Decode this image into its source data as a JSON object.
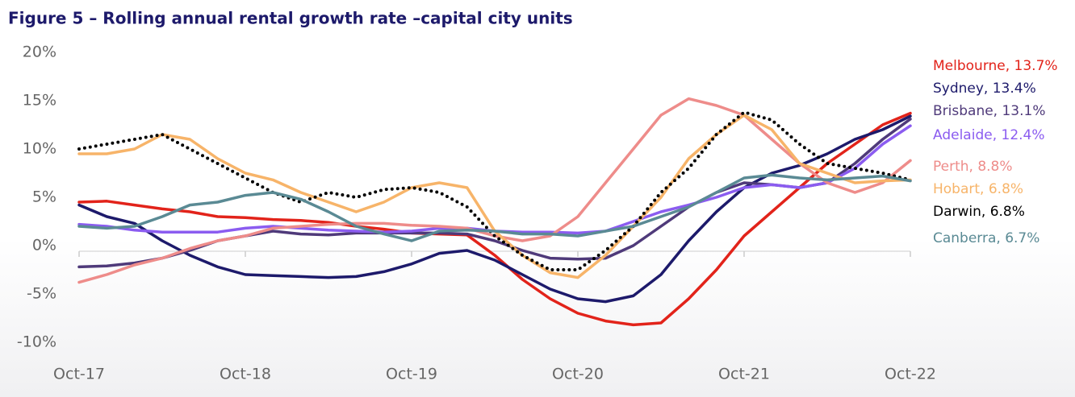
{
  "chart_data": {
    "type": "line",
    "title": "Figure 5 – Rolling annual rental growth rate –capital city units",
    "categories": [
      "Oct-17",
      null,
      null,
      null,
      null,
      null,
      "Oct-18",
      null,
      null,
      null,
      null,
      null,
      "Oct-19",
      null,
      null,
      null,
      null,
      null,
      "Oct-20",
      null,
      null,
      null,
      null,
      null,
      "Oct-21",
      null,
      null,
      null,
      null,
      null,
      "Oct-22"
    ],
    "ylim": [
      -10,
      20
    ],
    "yticks": [
      {
        "value": -10,
        "label": "-10%"
      },
      {
        "value": -5,
        "label": "-5%"
      },
      {
        "value": 0,
        "label": "0%"
      },
      {
        "value": 5,
        "label": "5%"
      },
      {
        "value": 10,
        "label": "10%"
      },
      {
        "value": 15,
        "label": "15%"
      },
      {
        "value": 20,
        "label": "20%"
      }
    ],
    "grid": false,
    "series": [
      {
        "name": "Melbourne, 13.7%",
        "color": "#e2231a",
        "values": [
          4.5,
          4.6,
          4.2,
          3.8,
          3.5,
          3.0,
          2.9,
          2.7,
          2.6,
          2.4,
          2.0,
          1.7,
          1.3,
          1.2,
          1.1,
          -1.0,
          -3.5,
          -5.5,
          -7.0,
          -7.8,
          -8.2,
          -8.0,
          -5.5,
          -2.5,
          1.0,
          3.5,
          6.0,
          8.5,
          10.5,
          12.5,
          13.7
        ]
      },
      {
        "name": "Sydney, 13.4%",
        "color": "#1d1a6b",
        "values": [
          4.2,
          3.0,
          2.3,
          0.5,
          -1.0,
          -2.2,
          -3.0,
          -3.1,
          -3.2,
          -3.3,
          -3.2,
          -2.7,
          -1.9,
          -0.8,
          -0.5,
          -1.5,
          -3.0,
          -4.5,
          -5.5,
          -5.8,
          -5.2,
          -3.0,
          0.5,
          3.5,
          6.0,
          7.5,
          8.3,
          9.5,
          11.0,
          12.0,
          13.4
        ]
      },
      {
        "name": "Brisbane, 13.1%",
        "color": "#4f3a7a",
        "values": [
          -2.2,
          -2.1,
          -1.8,
          -1.3,
          -0.5,
          0.5,
          1.0,
          1.5,
          1.2,
          1.1,
          1.3,
          1.3,
          1.3,
          1.3,
          1.2,
          0.5,
          -0.5,
          -1.3,
          -1.4,
          -1.3,
          0.0,
          2.0,
          4.0,
          5.5,
          6.5,
          6.3,
          6.0,
          6.5,
          8.5,
          11.0,
          13.1
        ]
      },
      {
        "name": "Adelaide, 12.4%",
        "color": "#8b5cf0",
        "values": [
          2.2,
          2.0,
          1.6,
          1.4,
          1.4,
          1.4,
          1.8,
          2.0,
          1.8,
          1.6,
          1.5,
          1.4,
          1.5,
          1.8,
          1.8,
          1.5,
          1.4,
          1.4,
          1.3,
          1.5,
          2.5,
          3.5,
          4.2,
          5.0,
          6.0,
          6.3,
          6.0,
          6.5,
          8.0,
          10.5,
          12.4
        ]
      },
      {
        "name": "Perth, 8.8%",
        "color": "#ee8c8a",
        "values": [
          -3.8,
          -3.0,
          -2.0,
          -1.3,
          -0.3,
          0.5,
          1.0,
          1.8,
          2.0,
          2.2,
          2.3,
          2.3,
          2.1,
          2.0,
          1.8,
          1.0,
          0.5,
          1.0,
          3.0,
          6.5,
          10.0,
          13.5,
          15.2,
          14.5,
          13.5,
          11.0,
          8.5,
          6.5,
          5.5,
          6.5,
          8.8
        ]
      },
      {
        "name": "Hobart, 6.8%",
        "color": "#f7b469",
        "values": [
          9.5,
          9.5,
          10.0,
          11.5,
          11.0,
          9.0,
          7.5,
          6.8,
          5.5,
          4.5,
          3.5,
          4.5,
          6.0,
          6.5,
          6.0,
          1.5,
          -1.0,
          -2.8,
          -3.3,
          -1.0,
          2.0,
          5.0,
          9.0,
          11.5,
          13.5,
          12.0,
          8.5,
          7.5,
          6.5,
          6.7,
          6.8
        ]
      },
      {
        "name": "Darwin, 6.8%",
        "color": "#000000",
        "style": "dotted",
        "values": [
          10.0,
          10.5,
          11.0,
          11.5,
          10.0,
          8.5,
          7.0,
          5.5,
          4.5,
          5.5,
          5.0,
          5.8,
          6.0,
          5.5,
          4.0,
          1.0,
          -1.0,
          -2.5,
          -2.5,
          -0.5,
          2.0,
          5.5,
          8.0,
          11.5,
          13.8,
          13.0,
          10.5,
          8.5,
          8.0,
          7.5,
          6.8
        ]
      },
      {
        "name": "Canberra, 6.7%",
        "color": "#5a8a94",
        "values": [
          2.0,
          1.8,
          2.0,
          3.0,
          4.2,
          4.5,
          5.2,
          5.5,
          4.8,
          3.5,
          2.0,
          1.2,
          0.5,
          1.5,
          1.6,
          1.5,
          1.2,
          1.2,
          1.0,
          1.5,
          2.0,
          3.0,
          4.0,
          5.5,
          7.0,
          7.3,
          7.0,
          6.8,
          7.0,
          7.2,
          6.7
        ]
      }
    ]
  }
}
